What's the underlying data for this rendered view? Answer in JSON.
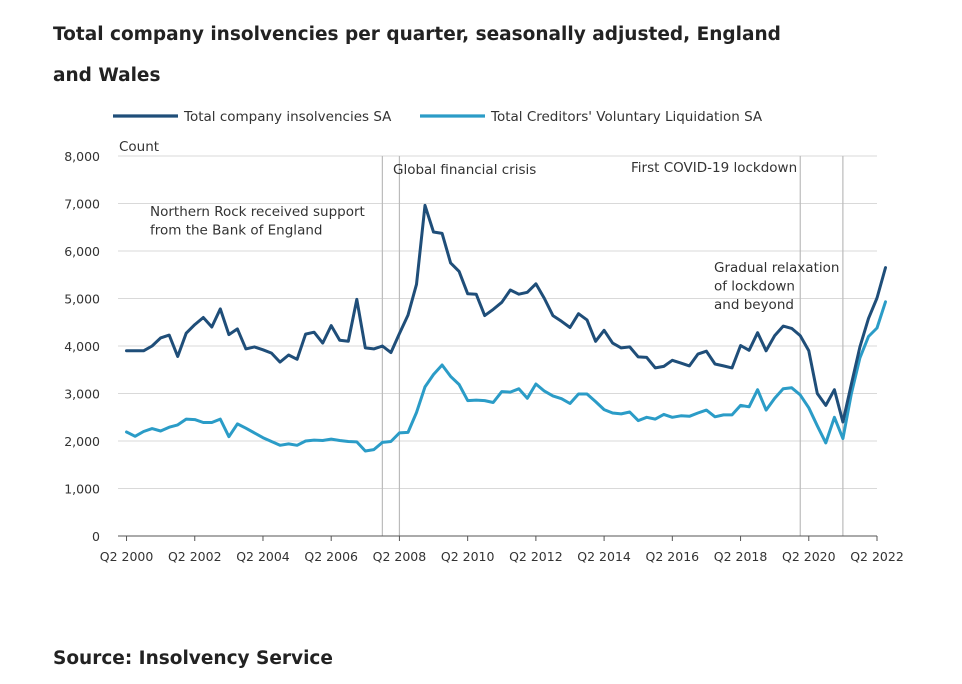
{
  "title": "Total company insolvencies per quarter, seasonally adjusted, England and Wales",
  "source": "Source: Insolvency Service",
  "chart_data": {
    "type": "line",
    "title": "Total company insolvencies per quarter, seasonally adjusted, England and Wales",
    "ylabel": "Count",
    "xlabel": "",
    "ylim": [
      0,
      8000
    ],
    "yticks": [
      0,
      1000,
      2000,
      3000,
      4000,
      5000,
      6000,
      7000,
      8000
    ],
    "ytick_labels": [
      "0",
      "1,000",
      "2,000",
      "3,000",
      "4,000",
      "5,000",
      "6,000",
      "7,000",
      "8,000"
    ],
    "x_start": 2000.25,
    "x_step": 0.25,
    "xlim": [
      2000.0,
      2022.25
    ],
    "xticks": [
      2000.25,
      2002.25,
      2004.25,
      2006.25,
      2008.25,
      2010.25,
      2012.25,
      2014.25,
      2016.25,
      2018.25,
      2020.25,
      2022.25
    ],
    "xtick_labels": [
      "Q2 2000",
      "Q2 2002",
      "Q2 2004",
      "Q2 2006",
      "Q2 2008",
      "Q2 2010",
      "Q2 2012",
      "Q2 2014",
      "Q2 2016",
      "Q2 2018",
      "Q2 2020",
      "Q2 2022"
    ],
    "grid": true,
    "legend_position": "top",
    "colors": {
      "total": "#1f4e79",
      "cvl": "#2b9cc7",
      "grid": "#d9d9d9",
      "axis": "#555555",
      "annotation_line": "#bbbbbb"
    },
    "series": [
      {
        "name": "Total company insolvencies SA",
        "key": "total",
        "values": [
          3900,
          3900,
          3900,
          4000,
          4170,
          4230,
          3780,
          4270,
          4450,
          4600,
          4400,
          4780,
          4240,
          4360,
          3940,
          3980,
          3920,
          3850,
          3660,
          3810,
          3720,
          4250,
          4290,
          4060,
          4430,
          4120,
          4100,
          4980,
          3960,
          3940,
          4000,
          3860,
          4260,
          4650,
          5300,
          6960,
          6400,
          6370,
          5750,
          5570,
          5100,
          5090,
          4640,
          4770,
          4920,
          5180,
          5090,
          5130,
          5310,
          5000,
          4640,
          4520,
          4390,
          4680,
          4550,
          4100,
          4330,
          4060,
          3960,
          3980,
          3770,
          3760,
          3540,
          3570,
          3700,
          3640,
          3580,
          3830,
          3890,
          3620,
          3580,
          3540,
          4010,
          3910,
          4280,
          3900,
          4220,
          4420,
          4370,
          4220,
          3900,
          3000,
          2750,
          3080,
          2400,
          3200,
          3980,
          4580,
          5010,
          5650
        ]
      },
      {
        "name": "Total Creditors' Voluntary Liquidation SA",
        "key": "cvl",
        "values": [
          2190,
          2100,
          2200,
          2260,
          2210,
          2290,
          2340,
          2460,
          2450,
          2390,
          2390,
          2460,
          2090,
          2360,
          2270,
          2170,
          2070,
          1990,
          1910,
          1940,
          1910,
          2000,
          2020,
          2010,
          2040,
          2010,
          1990,
          1980,
          1790,
          1820,
          1970,
          1990,
          2170,
          2180,
          2600,
          3140,
          3400,
          3600,
          3360,
          3190,
          2850,
          2860,
          2850,
          2810,
          3040,
          3030,
          3100,
          2900,
          3200,
          3050,
          2950,
          2890,
          2790,
          2990,
          2990,
          2830,
          2660,
          2590,
          2570,
          2610,
          2430,
          2500,
          2460,
          2560,
          2500,
          2530,
          2520,
          2590,
          2650,
          2510,
          2550,
          2550,
          2750,
          2720,
          3080,
          2650,
          2900,
          3100,
          3120,
          2970,
          2700,
          2320,
          1960,
          2500,
          2050,
          3000,
          3750,
          4200,
          4380,
          4930
        ]
      }
    ],
    "annotations": [
      {
        "label": "Northern Rock received support from the Bank of England",
        "lines": [
          "Northern Rock received support",
          "from the Bank of England"
        ],
        "x": 2007.75,
        "marker": true
      },
      {
        "label": "Global financial crisis",
        "lines": [
          "Global financial crisis"
        ],
        "x": 2008.25,
        "marker": true
      },
      {
        "label": "First COVID-19 lockdown",
        "lines": [
          "First COVID-19 lockdown"
        ],
        "x": 2020.0,
        "marker": true
      },
      {
        "label": "Gradual relaxation of lockdown and beyond",
        "lines": [
          "Gradual relaxation",
          "of lockdown",
          "and beyond"
        ],
        "x": 2021.25,
        "marker": true
      }
    ]
  }
}
